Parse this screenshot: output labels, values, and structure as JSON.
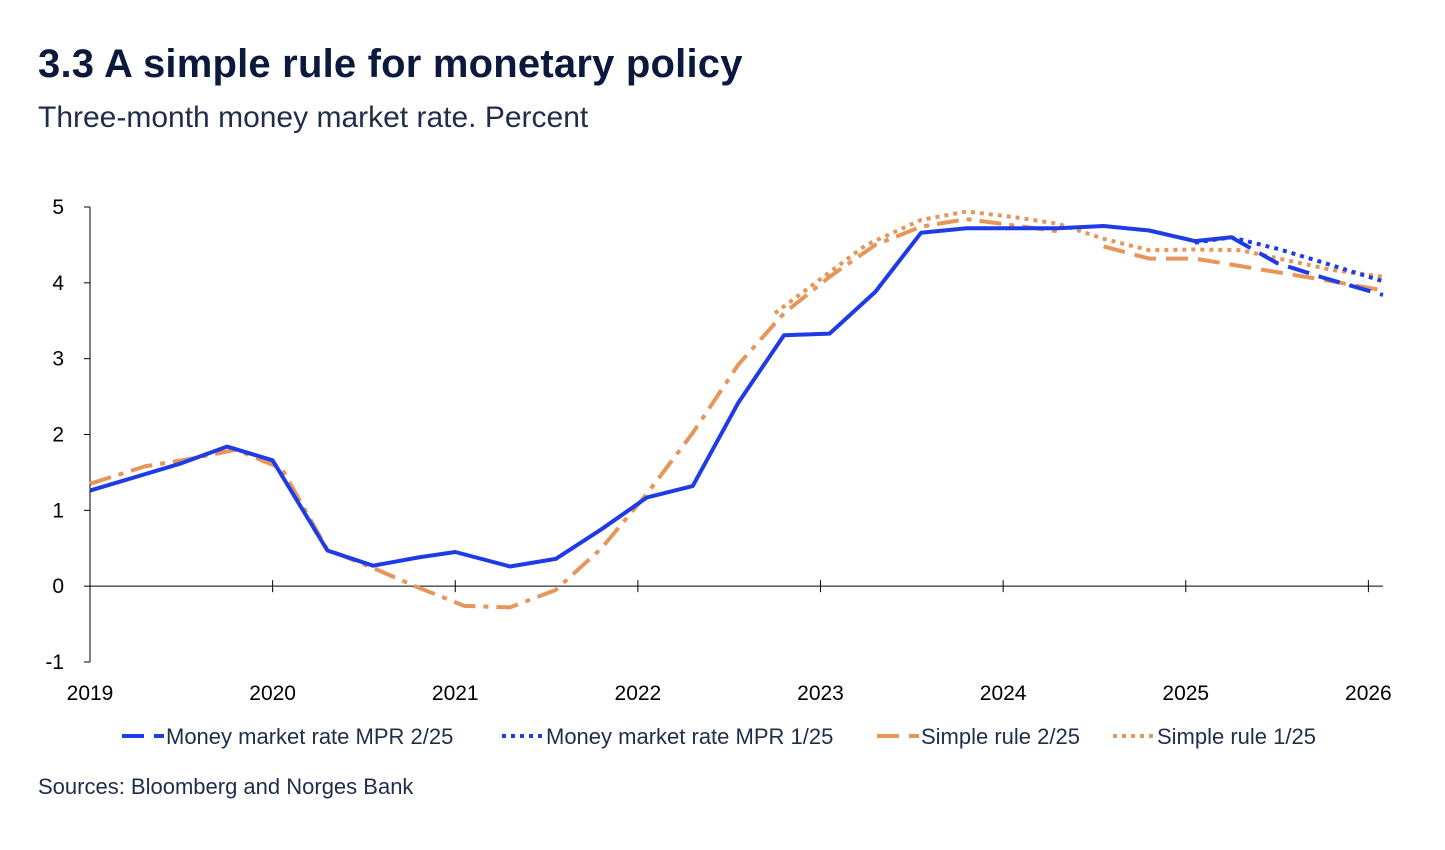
{
  "chart_data": {
    "type": "line",
    "title": "3.3 A simple rule for monetary policy",
    "subtitle": "Three-month money market rate. Percent",
    "source": "Sources: Bloomberg and  Norges Bank",
    "xlabel": "",
    "ylabel": "",
    "xlim": [
      2019.0,
      2026.08
    ],
    "ylim": [
      -1,
      5
    ],
    "y_ticks": [
      -1,
      0,
      1,
      2,
      3,
      4,
      5
    ],
    "x_ticks": [
      2019,
      2020,
      2021,
      2022,
      2023,
      2024,
      2025,
      2026
    ],
    "legend_position": "bottom",
    "colors": {
      "blue": "#1f3be6",
      "orange": "#e8955a",
      "axis": "#000000"
    },
    "series": [
      {
        "name": "Money market rate MPR 2/25",
        "color": "#1f3be6",
        "style": "solid-then-dashed",
        "dash_from_x": 2025.25,
        "points": [
          [
            2019.0,
            1.26
          ],
          [
            2019.5,
            1.62
          ],
          [
            2019.75,
            1.84
          ],
          [
            2020.0,
            1.66
          ],
          [
            2020.3,
            0.47
          ],
          [
            2020.55,
            0.27
          ],
          [
            2020.8,
            0.38
          ],
          [
            2021.0,
            0.45
          ],
          [
            2021.3,
            0.26
          ],
          [
            2021.55,
            0.36
          ],
          [
            2021.8,
            0.75
          ],
          [
            2022.05,
            1.17
          ],
          [
            2022.3,
            1.32
          ],
          [
            2022.55,
            2.42
          ],
          [
            2022.8,
            3.31
          ],
          [
            2023.05,
            3.33
          ],
          [
            2023.3,
            3.88
          ],
          [
            2023.55,
            4.66
          ],
          [
            2023.8,
            4.72
          ],
          [
            2024.05,
            4.72
          ],
          [
            2024.3,
            4.72
          ],
          [
            2024.55,
            4.75
          ],
          [
            2024.8,
            4.69
          ],
          [
            2025.05,
            4.55
          ],
          [
            2025.25,
            4.6
          ],
          [
            2025.5,
            4.26
          ],
          [
            2025.75,
            4.07
          ],
          [
            2026.08,
            3.84
          ]
        ]
      },
      {
        "name": "Money market rate MPR 1/25",
        "color": "#1f3be6",
        "style": "dotted",
        "points": [
          [
            2025.05,
            4.53
          ],
          [
            2025.25,
            4.6
          ],
          [
            2025.5,
            4.45
          ],
          [
            2025.75,
            4.27
          ],
          [
            2026.08,
            4.02
          ]
        ]
      },
      {
        "name": "Simple rule 2/25",
        "color": "#e8955a",
        "style": "dash-dot-then-dashed",
        "dash_from_x": 2024.5,
        "points": [
          [
            2019.0,
            1.35
          ],
          [
            2019.3,
            1.58
          ],
          [
            2019.55,
            1.68
          ],
          [
            2019.8,
            1.8
          ],
          [
            2020.05,
            1.55
          ],
          [
            2020.3,
            0.48
          ],
          [
            2020.55,
            0.24
          ],
          [
            2020.8,
            -0.02
          ],
          [
            2021.05,
            -0.26
          ],
          [
            2021.3,
            -0.28
          ],
          [
            2021.55,
            -0.05
          ],
          [
            2021.8,
            0.5
          ],
          [
            2022.05,
            1.22
          ],
          [
            2022.3,
            2.02
          ],
          [
            2022.55,
            2.92
          ],
          [
            2022.8,
            3.6
          ],
          [
            2023.05,
            4.08
          ],
          [
            2023.3,
            4.5
          ],
          [
            2023.55,
            4.74
          ],
          [
            2023.8,
            4.84
          ],
          [
            2024.05,
            4.76
          ],
          [
            2024.3,
            4.68
          ],
          [
            2024.55,
            4.48
          ],
          [
            2024.8,
            4.32
          ],
          [
            2025.05,
            4.32
          ],
          [
            2025.3,
            4.22
          ],
          [
            2025.55,
            4.12
          ],
          [
            2025.8,
            4.02
          ],
          [
            2026.08,
            3.9
          ]
        ]
      },
      {
        "name": "Simple rule 1/25",
        "color": "#e8955a",
        "style": "dotted",
        "points": [
          [
            2022.75,
            3.6
          ],
          [
            2023.0,
            4.05
          ],
          [
            2023.25,
            4.5
          ],
          [
            2023.55,
            4.83
          ],
          [
            2023.8,
            4.94
          ],
          [
            2024.05,
            4.87
          ],
          [
            2024.3,
            4.78
          ],
          [
            2024.55,
            4.58
          ],
          [
            2024.8,
            4.43
          ],
          [
            2025.05,
            4.44
          ],
          [
            2025.3,
            4.43
          ],
          [
            2025.55,
            4.3
          ],
          [
            2025.8,
            4.17
          ],
          [
            2026.08,
            4.08
          ]
        ]
      }
    ]
  }
}
